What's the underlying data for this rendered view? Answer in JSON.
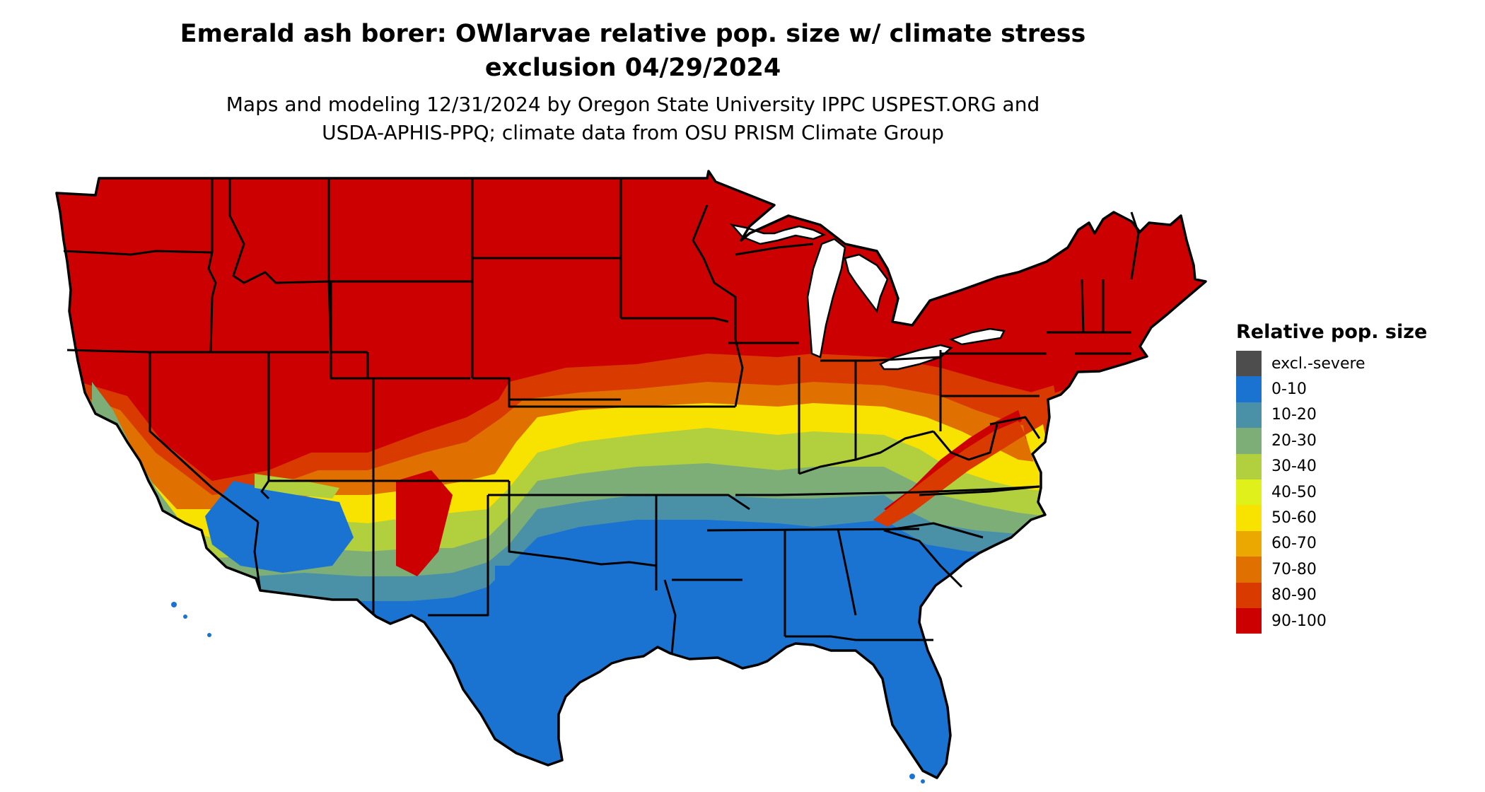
{
  "title_line1": "Emerald ash borer: OWlarvae relative pop. size w/ climate stress",
  "title_line2": "exclusion 04/29/2024",
  "subtitle_line1": "Maps and modeling 12/31/2024 by Oregon State University IPPC USPEST.ORG and",
  "subtitle_line2": "USDA-APHIS-PPQ; climate data from OSU PRISM Climate Group",
  "legend": {
    "title": "Relative pop. size",
    "items": [
      {
        "label": "excl.-severe",
        "color": "#4d4d4d"
      },
      {
        "label": "0-10",
        "color": "#1a73d0"
      },
      {
        "label": "10-20",
        "color": "#4a91a8"
      },
      {
        "label": "20-30",
        "color": "#7dae78"
      },
      {
        "label": "30-40",
        "color": "#b2cf3e"
      },
      {
        "label": "40-50",
        "color": "#dff01a"
      },
      {
        "label": "50-60",
        "color": "#f7e200"
      },
      {
        "label": "60-70",
        "color": "#eba800"
      },
      {
        "label": "70-80",
        "color": "#e07000"
      },
      {
        "label": "80-90",
        "color": "#d83a00"
      },
      {
        "label": "90-100",
        "color": "#cc0000"
      }
    ]
  }
}
